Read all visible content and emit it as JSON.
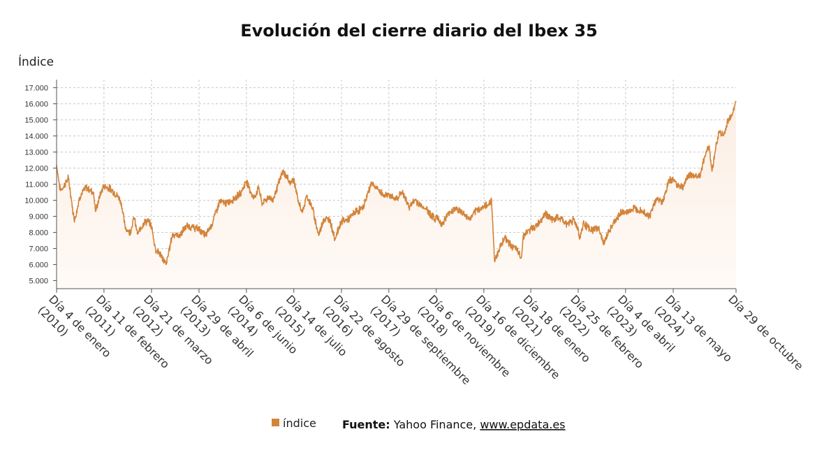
{
  "chart_data": {
    "type": "area",
    "title": "Evolución del cierre diario del Ibex 35",
    "ylabel": "Índice",
    "ylim": [
      4500,
      17500
    ],
    "y_ticks": [
      5000,
      6000,
      7000,
      8000,
      9000,
      10000,
      11000,
      12000,
      13000,
      14000,
      15000,
      16000,
      17000
    ],
    "y_tick_labels": [
      "5.000",
      "6.000",
      "7.000",
      "8.000",
      "9.000",
      "10.000",
      "11.000",
      "12.000",
      "13.000",
      "14.000",
      "15.000",
      "16.000",
      "17.000"
    ],
    "x_range": [
      "2010-01-04",
      "2025-10-29"
    ],
    "x_ticks": [
      {
        "date": "2010-01-04",
        "line1": "Día 4 de enero",
        "line2": "(2010)"
      },
      {
        "date": "2011-02-11",
        "line1": "Día 11 de febrero",
        "line2": "(2011)"
      },
      {
        "date": "2012-03-21",
        "line1": "Día 21 de marzo",
        "line2": "(2012)"
      },
      {
        "date": "2013-04-29",
        "line1": "Día 29 de abril",
        "line2": "(2013)"
      },
      {
        "date": "2014-06-06",
        "line1": "Día 6 de junio",
        "line2": "(2014)"
      },
      {
        "date": "2015-07-14",
        "line1": "Día 14 de julio",
        "line2": "(2015)"
      },
      {
        "date": "2016-08-22",
        "line1": "Día 22 de agosto",
        "line2": "(2016)"
      },
      {
        "date": "2017-09-29",
        "line1": "Día 29 de septiembre",
        "line2": "(2017)"
      },
      {
        "date": "2018-11-06",
        "line1": "Día 6 de noviembre",
        "line2": "(2018)"
      },
      {
        "date": "2019-12-16",
        "line1": "Día 16 de diciembre",
        "line2": "(2019)"
      },
      {
        "date": "2021-01-18",
        "line1": "Día 18 de enero",
        "line2": "(2021)"
      },
      {
        "date": "2022-02-25",
        "line1": "Día 25 de febrero",
        "line2": "(2022)"
      },
      {
        "date": "2023-04-04",
        "line1": "Día 4 de abril",
        "line2": "(2023)"
      },
      {
        "date": "2024-05-13",
        "line1": "Día 13 de mayo",
        "line2": "(2024)"
      },
      {
        "date": "2025-10-29",
        "line1": "Día 29 de octubre",
        "line2": ""
      }
    ],
    "grid": true,
    "legend_position": "bottom-center",
    "series": [
      {
        "name": "índice",
        "color": "#d2843a",
        "fill": "#fbeee4",
        "points": [
          [
            "2010-01-04",
            12200
          ],
          [
            "2010-02-05",
            10600
          ],
          [
            "2010-03-01",
            10800
          ],
          [
            "2010-04-15",
            11400
          ],
          [
            "2010-05-25",
            9200
          ],
          [
            "2010-06-08",
            8800
          ],
          [
            "2010-07-20",
            10200
          ],
          [
            "2010-09-10",
            10800
          ],
          [
            "2010-11-15",
            10500
          ],
          [
            "2010-12-01",
            9300
          ],
          [
            "2011-01-20",
            10600
          ],
          [
            "2011-02-11",
            10900
          ],
          [
            "2011-04-10",
            10700
          ],
          [
            "2011-06-15",
            10200
          ],
          [
            "2011-07-10",
            9800
          ],
          [
            "2011-08-10",
            8300
          ],
          [
            "2011-09-20",
            8000
          ],
          [
            "2011-10-25",
            8900
          ],
          [
            "2011-11-25",
            7900
          ],
          [
            "2012-01-15",
            8600
          ],
          [
            "2012-02-20",
            8700
          ],
          [
            "2012-03-21",
            8400
          ],
          [
            "2012-04-25",
            6900
          ],
          [
            "2012-05-20",
            6800
          ],
          [
            "2012-06-15",
            6500
          ],
          [
            "2012-07-24",
            6000
          ],
          [
            "2012-09-15",
            7900
          ],
          [
            "2012-11-15",
            7800
          ],
          [
            "2013-01-15",
            8400
          ],
          [
            "2013-03-10",
            8300
          ],
          [
            "2013-04-29",
            8200
          ],
          [
            "2013-06-25",
            7800
          ],
          [
            "2013-08-15",
            8500
          ],
          [
            "2013-10-20",
            9900
          ],
          [
            "2013-12-20",
            9800
          ],
          [
            "2014-02-20",
            10100
          ],
          [
            "2014-04-15",
            10400
          ],
          [
            "2014-06-06",
            11200
          ],
          [
            "2014-08-07",
            10100
          ],
          [
            "2014-09-20",
            10800
          ],
          [
            "2014-10-15",
            9800
          ],
          [
            "2014-12-15",
            10200
          ],
          [
            "2015-01-15",
            10000
          ],
          [
            "2015-03-15",
            11200
          ],
          [
            "2015-04-13",
            11800
          ],
          [
            "2015-06-15",
            11100
          ],
          [
            "2015-07-14",
            11300
          ],
          [
            "2015-08-24",
            9800
          ],
          [
            "2015-09-29",
            9300
          ],
          [
            "2015-11-01",
            10300
          ],
          [
            "2015-12-20",
            9500
          ],
          [
            "2016-02-11",
            7800
          ],
          [
            "2016-03-20",
            8800
          ],
          [
            "2016-05-15",
            8800
          ],
          [
            "2016-06-27",
            7600
          ],
          [
            "2016-08-22",
            8700
          ],
          [
            "2016-10-20",
            8800
          ],
          [
            "2016-12-20",
            9300
          ],
          [
            "2017-02-20",
            9500
          ],
          [
            "2017-05-05",
            11100
          ],
          [
            "2017-06-20",
            10700
          ],
          [
            "2017-08-20",
            10300
          ],
          [
            "2017-09-29",
            10400
          ],
          [
            "2017-11-15",
            10000
          ],
          [
            "2018-01-20",
            10500
          ],
          [
            "2018-03-20",
            9600
          ],
          [
            "2018-05-15",
            10000
          ],
          [
            "2018-06-20",
            9700
          ],
          [
            "2018-08-10",
            9500
          ],
          [
            "2018-10-25",
            8800
          ],
          [
            "2018-11-06",
            9000
          ],
          [
            "2018-12-27",
            8500
          ],
          [
            "2019-02-20",
            9200
          ],
          [
            "2019-04-20",
            9500
          ],
          [
            "2019-06-20",
            9200
          ],
          [
            "2019-08-15",
            8800
          ],
          [
            "2019-10-20",
            9400
          ],
          [
            "2019-12-16",
            9600
          ],
          [
            "2020-01-20",
            9700
          ],
          [
            "2020-02-19",
            10050
          ],
          [
            "2020-03-16",
            6200
          ],
          [
            "2020-04-20",
            6900
          ],
          [
            "2020-06-08",
            7700
          ],
          [
            "2020-07-20",
            7300
          ],
          [
            "2020-09-20",
            6900
          ],
          [
            "2020-10-30",
            6450
          ],
          [
            "2020-11-15",
            7800
          ],
          [
            "2021-01-18",
            8200
          ],
          [
            "2021-03-20",
            8500
          ],
          [
            "2021-05-20",
            9200
          ],
          [
            "2021-07-15",
            8800
          ],
          [
            "2021-09-20",
            8900
          ],
          [
            "2021-11-25",
            8500
          ],
          [
            "2022-01-15",
            8800
          ],
          [
            "2022-02-25",
            8250
          ],
          [
            "2022-03-07",
            7600
          ],
          [
            "2022-04-15",
            8600
          ],
          [
            "2022-06-10",
            8100
          ],
          [
            "2022-08-15",
            8300
          ],
          [
            "2022-09-30",
            7300
          ],
          [
            "2022-11-15",
            8100
          ],
          [
            "2023-01-15",
            8800
          ],
          [
            "2023-03-01",
            9300
          ],
          [
            "2023-04-04",
            9200
          ],
          [
            "2023-06-15",
            9500
          ],
          [
            "2023-08-15",
            9400
          ],
          [
            "2023-10-26",
            9000
          ],
          [
            "2023-12-20",
            10100
          ],
          [
            "2024-02-15",
            9900
          ],
          [
            "2024-04-05",
            11200
          ],
          [
            "2024-05-13",
            11300
          ],
          [
            "2024-06-15",
            11000
          ],
          [
            "2024-08-05",
            10800
          ],
          [
            "2024-09-20",
            11600
          ],
          [
            "2024-11-20",
            11500
          ],
          [
            "2024-12-31",
            11600
          ],
          [
            "2025-02-15",
            13000
          ],
          [
            "2025-03-15",
            13400
          ],
          [
            "2025-04-07",
            11800
          ],
          [
            "2025-05-10",
            13300
          ],
          [
            "2025-06-10",
            14300
          ],
          [
            "2025-07-15",
            14000
          ],
          [
            "2025-08-20",
            14900
          ],
          [
            "2025-09-20",
            15300
          ],
          [
            "2025-10-29",
            16100
          ]
        ]
      }
    ]
  },
  "source": {
    "label": "Fuente:",
    "text": " Yahoo Finance, ",
    "link": "www.epdata.es"
  }
}
